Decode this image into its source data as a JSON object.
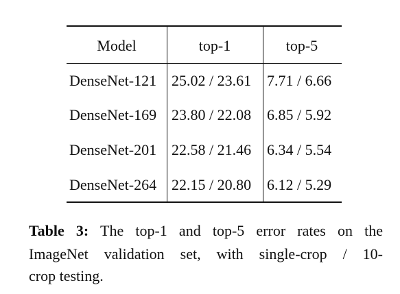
{
  "table": {
    "header": [
      "Model",
      "top-1",
      "top-5"
    ],
    "rows": [
      [
        "DenseNet-121",
        "25.02 / 23.61",
        "7.71 / 6.66"
      ],
      [
        "DenseNet-169",
        "23.80 / 22.08",
        "6.85 / 5.92"
      ],
      [
        "DenseNet-201",
        "22.58 / 21.46",
        "6.34 / 5.54"
      ],
      [
        "DenseNet-264",
        "22.15 / 20.80",
        "6.12 / 5.29"
      ]
    ]
  },
  "caption": {
    "label": "Table 3:",
    "lines": [
      "The top-1 and top-5 error rates on the",
      "ImageNet validation set, with single-crop / 10-",
      "crop testing."
    ]
  }
}
